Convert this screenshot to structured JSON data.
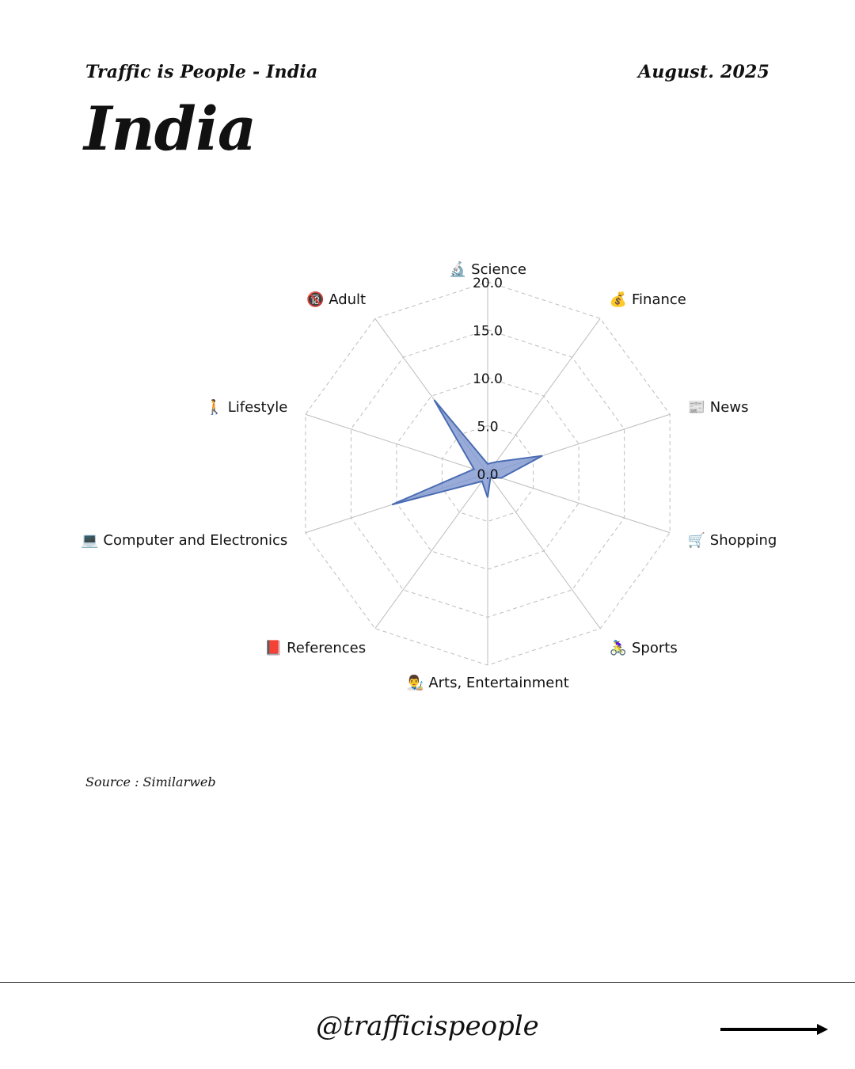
{
  "header": {
    "left": "Traffic is People - India",
    "right": "August. 2025",
    "title": "India"
  },
  "source": "Source : Similarweb",
  "footer": {
    "handle": "@trafficispeople",
    "arrow_icon": "arrow-right-icon"
  },
  "chart_data": {
    "type": "radar",
    "categories": [
      {
        "label": "Science",
        "icon": "🔬"
      },
      {
        "label": "Finance",
        "icon": "💰"
      },
      {
        "label": "News",
        "icon": "📰"
      },
      {
        "label": "Shopping",
        "icon": "🛒"
      },
      {
        "label": "Sports",
        "icon": "🚴‍♀️"
      },
      {
        "label": "Arts, Entertainment",
        "icon": "👨‍🎨"
      },
      {
        "label": "References",
        "icon": "📕"
      },
      {
        "label": "Computer and Electronics",
        "icon": "💻"
      },
      {
        "label": "Lifestyle",
        "icon": "🚶"
      },
      {
        "label": "Adult",
        "icon": "🔞"
      }
    ],
    "series": [
      {
        "values": [
          1.0,
          1.5,
          6.0,
          1.5,
          0.5,
          2.5,
          1.0,
          10.5,
          1.5,
          9.5
        ]
      }
    ],
    "rlim": [
      0,
      20
    ],
    "ticks": [
      "0.0",
      "5.0",
      "10.0",
      "15.0",
      "20.0"
    ],
    "colors": {
      "fill": "#7f97cf",
      "stroke": "#4a6cb3",
      "grid": "#bdbdbd"
    }
  }
}
